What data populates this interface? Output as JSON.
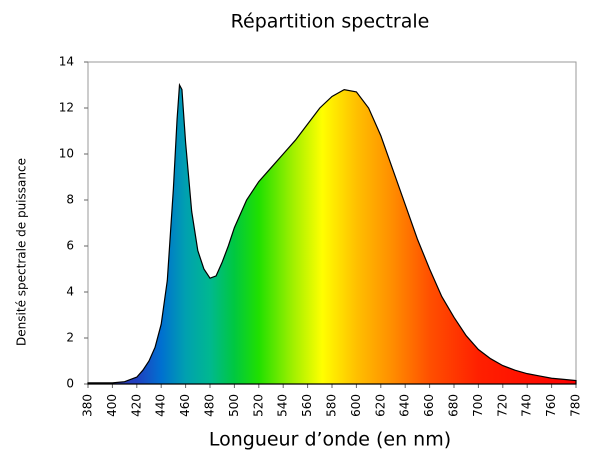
{
  "chart_data": {
    "type": "area",
    "title": "Répartition spectrale",
    "xlabel": "Longueur d’onde (en nm)",
    "ylabel": "Densité spectrale de puissance",
    "x": [
      380,
      390,
      400,
      410,
      420,
      425,
      430,
      435,
      440,
      445,
      450,
      453,
      455,
      457,
      460,
      465,
      470,
      475,
      480,
      485,
      490,
      495,
      500,
      510,
      520,
      530,
      540,
      550,
      560,
      570,
      580,
      590,
      600,
      610,
      620,
      630,
      640,
      650,
      660,
      670,
      680,
      690,
      700,
      710,
      720,
      730,
      740,
      750,
      760,
      770,
      780
    ],
    "values": [
      0.05,
      0.05,
      0.05,
      0.1,
      0.3,
      0.6,
      1.0,
      1.6,
      2.6,
      4.5,
      8.5,
      11.5,
      13.0,
      12.8,
      10.5,
      7.5,
      5.8,
      5.0,
      4.6,
      4.7,
      5.3,
      6.0,
      6.8,
      8.0,
      8.8,
      9.4,
      10.0,
      10.6,
      11.3,
      12.0,
      12.5,
      12.8,
      12.7,
      12.0,
      10.8,
      9.3,
      7.8,
      6.3,
      5.0,
      3.8,
      2.9,
      2.1,
      1.5,
      1.1,
      0.8,
      0.6,
      0.45,
      0.35,
      0.25,
      0.2,
      0.15
    ],
    "xlim": [
      380,
      780
    ],
    "ylim": [
      0,
      14
    ],
    "xticks": [
      380,
      400,
      420,
      440,
      460,
      480,
      500,
      520,
      540,
      560,
      580,
      600,
      620,
      640,
      660,
      680,
      700,
      720,
      740,
      760,
      780
    ],
    "yticks": [
      0,
      2,
      4,
      6,
      8,
      10,
      12,
      14
    ]
  }
}
